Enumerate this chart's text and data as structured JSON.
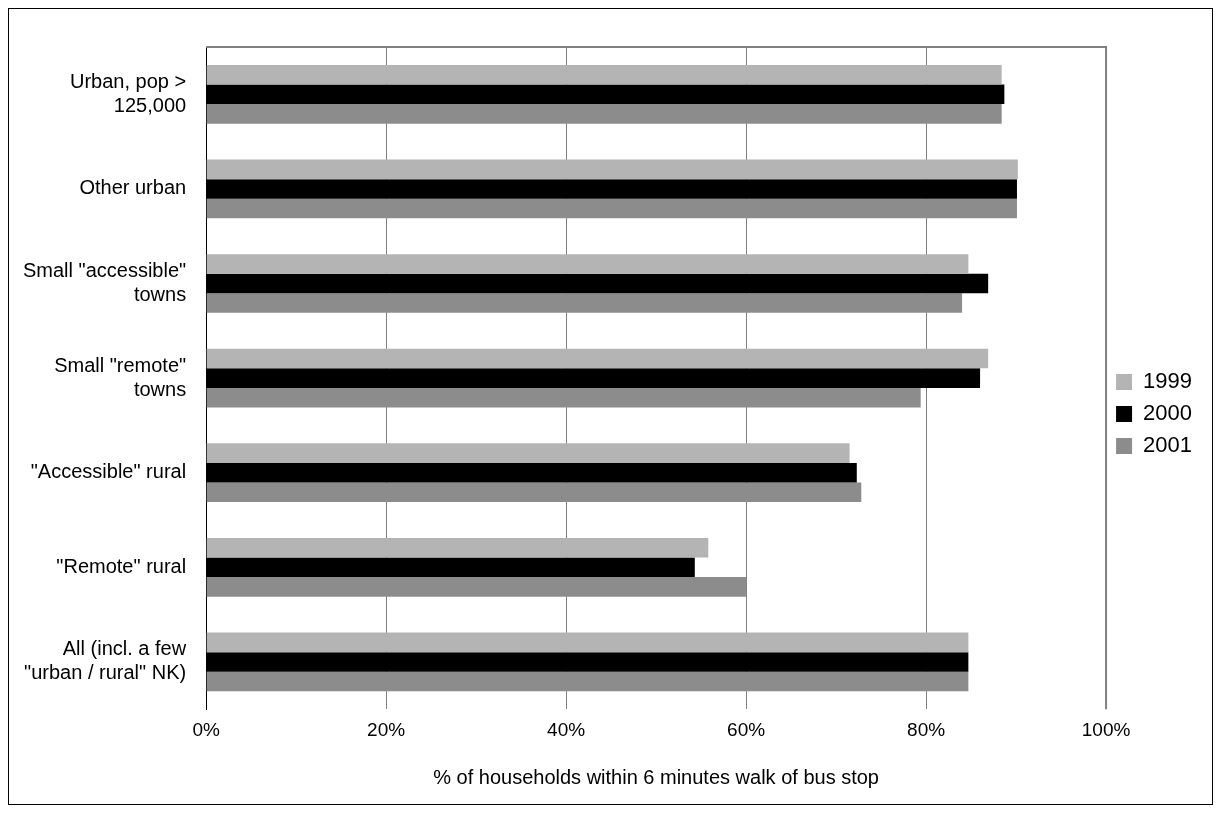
{
  "chart_data": {
    "type": "bar",
    "orientation": "horizontal",
    "xlabel": "% of households within 6 minutes walk of bus stop",
    "categories": [
      "Urban, pop > 125,000",
      "Other urban",
      "Small \"accessible\" towns",
      "Small \"remote\" towns",
      "\"Accessible\" rural",
      "\"Remote\" rural",
      "All (incl. a few \"urban / rural\" NK)"
    ],
    "series": [
      {
        "name": "1999",
        "color": "#b4b4b4",
        "values": [
          88.4,
          90.2,
          84.7,
          86.9,
          71.5,
          55.8,
          84.7
        ]
      },
      {
        "name": "2000",
        "color": "#000000",
        "values": [
          88.7,
          90.1,
          86.9,
          86.0,
          72.3,
          54.3,
          84.7
        ]
      },
      {
        "name": "2001",
        "color": "#8c8c8c",
        "values": [
          88.4,
          90.1,
          84.0,
          79.4,
          72.8,
          60.0,
          84.7
        ]
      }
    ],
    "xlim": [
      0,
      100
    ],
    "xticks": [
      {
        "value": 0,
        "label": "0%"
      },
      {
        "value": 20,
        "label": "20%"
      },
      {
        "value": 40,
        "label": "40%"
      },
      {
        "value": 60,
        "label": "60%"
      },
      {
        "value": 80,
        "label": "80%"
      },
      {
        "value": 100,
        "label": "100%"
      }
    ],
    "grid": "x",
    "legend": "right"
  }
}
